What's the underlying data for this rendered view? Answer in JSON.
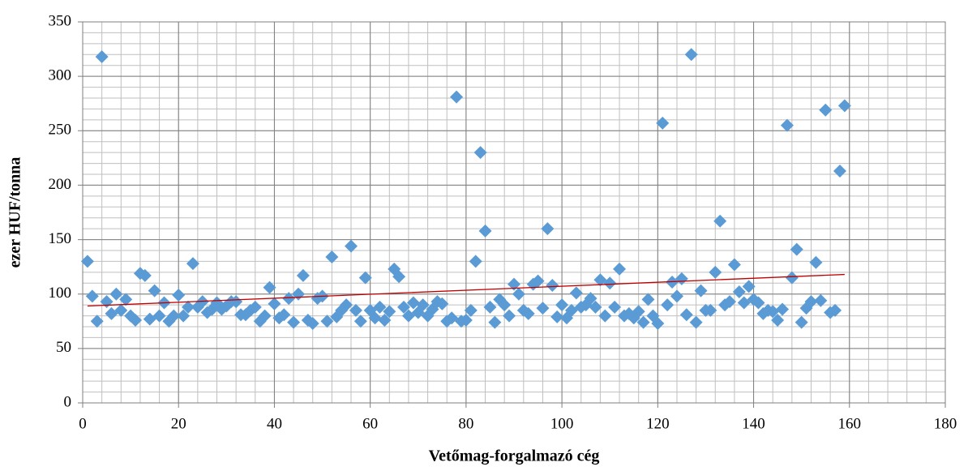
{
  "chart_data": {
    "type": "scatter",
    "xlabel": "Vetőmag-forgalmazó cég",
    "ylabel": "ezer HUF/tonna",
    "xlim": [
      0,
      180
    ],
    "xticks": [
      0,
      20,
      40,
      60,
      80,
      100,
      120,
      140,
      160,
      180
    ],
    "ylim": [
      0,
      350
    ],
    "yticks": [
      0,
      50,
      100,
      150,
      200,
      250,
      300,
      350
    ],
    "grid": true,
    "minor_grid": {
      "x": 4,
      "y": 10
    },
    "series": [
      {
        "color": "#5b9bd5",
        "x": [
          1,
          2,
          3,
          4,
          5,
          6,
          7,
          8,
          9,
          10,
          11,
          12,
          13,
          14,
          15,
          16,
          17,
          18,
          19,
          20,
          21,
          22,
          23,
          24,
          25,
          26,
          27,
          28,
          29,
          30,
          31,
          32,
          33,
          34,
          35,
          36,
          37,
          38,
          39,
          40,
          41,
          42,
          43,
          44,
          45,
          46,
          47,
          48,
          49,
          50,
          51,
          52,
          53,
          54,
          55,
          56,
          57,
          58,
          59,
          60,
          61,
          62,
          63,
          64,
          65,
          66,
          67,
          68,
          69,
          70,
          71,
          72,
          73,
          74,
          75,
          76,
          77,
          78,
          79,
          80,
          81,
          82,
          83,
          84,
          85,
          86,
          87,
          88,
          89,
          90,
          91,
          92,
          93,
          94,
          95,
          96,
          97,
          98,
          99,
          100,
          101,
          102,
          103,
          104,
          105,
          106,
          107,
          108,
          109,
          110,
          111,
          112,
          113,
          114,
          115,
          116,
          117,
          118,
          119,
          120,
          121,
          122,
          123,
          124,
          125,
          126,
          127,
          128,
          129,
          130,
          131,
          132,
          133,
          134,
          135,
          136,
          137,
          138,
          139,
          140,
          141,
          142,
          143,
          144,
          145,
          146,
          147,
          148,
          149,
          150,
          151,
          152,
          153,
          154,
          155,
          156,
          157,
          158,
          159
        ],
        "values": [
          130,
          98,
          75,
          318,
          93,
          82,
          100,
          85,
          95,
          80,
          76,
          119,
          117,
          77,
          103,
          80,
          92,
          75,
          80,
          99,
          80,
          88,
          128,
          88,
          93,
          83,
          86,
          92,
          86,
          89,
          93,
          93,
          81,
          81,
          85,
          88,
          75,
          80,
          106,
          91,
          78,
          81,
          96,
          74,
          100,
          117,
          76,
          73,
          96,
          98,
          75,
          134,
          79,
          85,
          90,
          144,
          85,
          75,
          115,
          85,
          78,
          88,
          76,
          84,
          123,
          116,
          88,
          80,
          92,
          83,
          90,
          80,
          86,
          93,
          91,
          75,
          78,
          281,
          75,
          76,
          85,
          130,
          230,
          158,
          88,
          74,
          95,
          90,
          80,
          109,
          100,
          85,
          82,
          109,
          112,
          87,
          160,
          108,
          79,
          90,
          78,
          85,
          101,
          88,
          90,
          96,
          88,
          113,
          80,
          110,
          88,
          123,
          80,
          82,
          78,
          84,
          74,
          95,
          80,
          73,
          257,
          90,
          111,
          98,
          114,
          81,
          320,
          74,
          103,
          85,
          85,
          120,
          167,
          90,
          93,
          127,
          102,
          92,
          107,
          95,
          92,
          82,
          85,
          84,
          76,
          86,
          255,
          115,
          141,
          74,
          87,
          93,
          129,
          94,
          269,
          83,
          85,
          213,
          273
        ]
      }
    ],
    "trendline": {
      "x": [
        1,
        159
      ],
      "y": [
        89,
        118
      ],
      "color": "#c00000"
    }
  }
}
